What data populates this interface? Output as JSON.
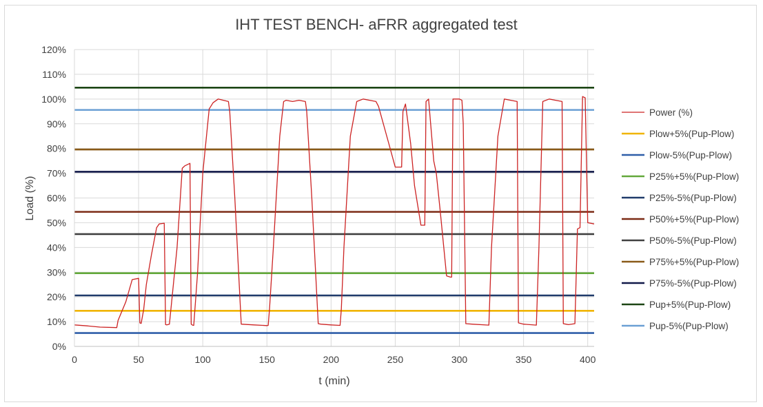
{
  "chart_data": {
    "type": "line",
    "title": "IHT TEST BENCH- aFRR aggregated test",
    "xlabel": "t (min)",
    "ylabel": "Load (%)",
    "xlim": [
      0,
      405
    ],
    "ylim": [
      0,
      120
    ],
    "x_ticks": [
      0,
      50,
      100,
      150,
      200,
      250,
      300,
      350,
      400
    ],
    "y_ticks": [
      0,
      10,
      20,
      30,
      40,
      50,
      60,
      70,
      80,
      90,
      100,
      110,
      120
    ],
    "y_tick_labels": [
      "0%",
      "10%",
      "20%",
      "30%",
      "40%",
      "50%",
      "60%",
      "70%",
      "80%",
      "90%",
      "100%",
      "110%",
      "120%"
    ],
    "grid": "both",
    "legend_position": "right",
    "series": [
      {
        "name": "Power (%)",
        "color": "#cc2222",
        "style": "line",
        "x": [
          0,
          10,
          20,
          33,
          34,
          40,
          45,
          50,
          51,
          52,
          54,
          56,
          60,
          64,
          66,
          70,
          71,
          72,
          74,
          80,
          84,
          86,
          90,
          91,
          92,
          93,
          96,
          100,
          105,
          108,
          112,
          116,
          120,
          121,
          125,
          130,
          140,
          150,
          151,
          152,
          155,
          160,
          163,
          165,
          170,
          175,
          180,
          181,
          185,
          190,
          192,
          200,
          207,
          208,
          210,
          215,
          220,
          225,
          230,
          235,
          237,
          245,
          250,
          255,
          256,
          258,
          262,
          265,
          270,
          273,
          274,
          276,
          280,
          282,
          285,
          290,
          293,
          294,
          295,
          296,
          300,
          302,
          303,
          305,
          310,
          323,
          325,
          330,
          335,
          340,
          345,
          346,
          350,
          360,
          362,
          365,
          370,
          375,
          380,
          381,
          383,
          385,
          390,
          392,
          394,
          396,
          398,
          400,
          405
        ],
        "values": [
          8.7,
          8.3,
          7.8,
          7.6,
          10.5,
          18,
          27,
          27.5,
          9.5,
          9.3,
          15,
          25,
          37,
          48,
          49.5,
          49.8,
          8.8,
          8.7,
          9,
          40,
          72,
          73,
          74,
          9,
          8.6,
          8.5,
          30,
          70,
          96,
          98.5,
          100,
          99.5,
          99,
          95,
          60,
          9,
          8.7,
          8.4,
          8.5,
          15,
          40,
          85,
          99,
          99.5,
          99,
          99.5,
          99,
          95,
          60,
          9.2,
          9,
          8.7,
          8.5,
          15,
          40,
          85,
          99,
          100,
          99.5,
          99,
          97,
          82,
          72.5,
          72.5,
          95,
          98,
          82,
          65,
          49,
          49,
          99,
          100,
          75,
          70,
          55,
          28.5,
          28,
          28,
          100,
          100,
          100,
          99.5,
          90,
          9.2,
          9,
          8.6,
          40,
          85,
          100,
          99.5,
          99,
          9.5,
          9,
          8.6,
          40,
          99,
          100,
          99.5,
          99,
          9.2,
          9,
          8.8,
          9.2,
          47.5,
          48,
          101,
          100.5,
          50,
          49.5
        ]
      },
      {
        "name": "Plow+5%(Pup-Plow)",
        "color": "#f0b400",
        "style": "hline",
        "value": 14.4
      },
      {
        "name": "Plow-5%(Pup-Plow)",
        "color": "#2e5ea8",
        "style": "hline",
        "value": 5.4
      },
      {
        "name": "P25%+5%(Pup-Plow)",
        "color": "#62a83a",
        "style": "hline",
        "value": 29.6
      },
      {
        "name": "P25%-5%(Pup-Plow)",
        "color": "#1f3a6a",
        "style": "hline",
        "value": 20.6
      },
      {
        "name": "P50%+5%(Pup-Plow)",
        "color": "#7b2a14",
        "style": "hline",
        "value": 54.4
      },
      {
        "name": "P50%-5%(Pup-Plow)",
        "color": "#404040",
        "style": "hline",
        "value": 45.4
      },
      {
        "name": "P75%+5%(Pup-Plow)",
        "color": "#8a5a18",
        "style": "hline",
        "value": 79.6
      },
      {
        "name": "P75%-5%(Pup-Plow)",
        "color": "#101848",
        "style": "hline",
        "value": 70.6
      },
      {
        "name": "Pup+5%(Pup-Plow)",
        "color": "#1c4514",
        "style": "hline",
        "value": 104.6
      },
      {
        "name": "Pup-5%(Pup-Plow)",
        "color": "#6a9fd4",
        "style": "hline",
        "value": 95.6
      }
    ]
  }
}
